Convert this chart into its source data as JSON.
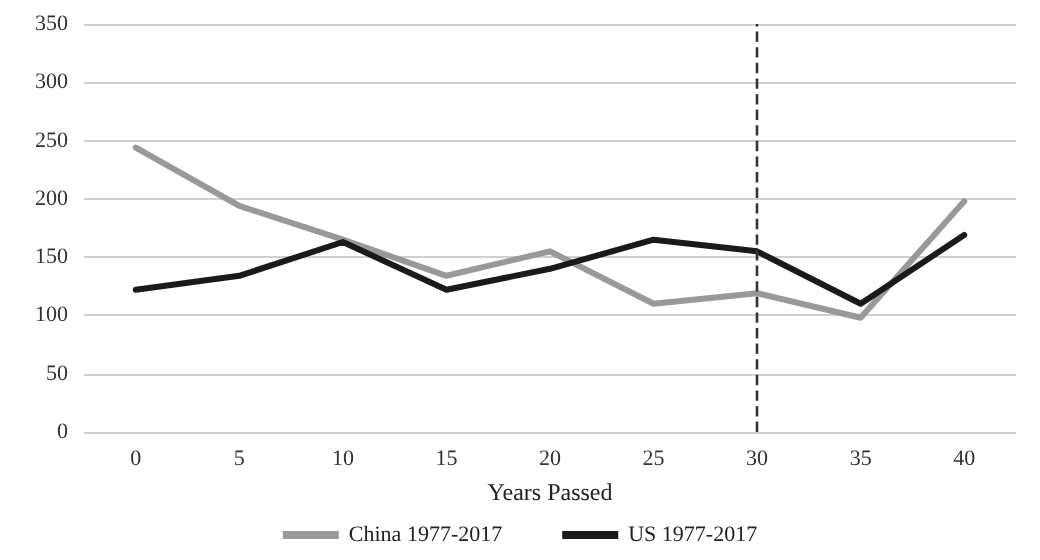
{
  "chart_data": {
    "type": "line",
    "xlabel": "Years Passed",
    "categories": [
      "0",
      "5",
      "10",
      "15",
      "20",
      "25",
      "30",
      "35",
      "40"
    ],
    "series": [
      {
        "name": "China 1977-2017",
        "color": "#999999",
        "values": [
          244,
          194,
          165,
          134,
          155,
          110,
          119,
          98,
          198
        ]
      },
      {
        "name": "US 1977-2017",
        "color": "#1a1a1a",
        "values": [
          122,
          134,
          163,
          122,
          140,
          165,
          155,
          110,
          169
        ]
      }
    ],
    "ylim": [
      0,
      350
    ],
    "yticks": [
      0,
      50,
      100,
      150,
      200,
      250,
      300,
      350
    ],
    "grid": "y",
    "legend": "bottom",
    "marker": "none",
    "line_style": "solid",
    "ref_lines": [
      {
        "axis": "x",
        "value": "30",
        "color": "#333333",
        "line_style": "dashed"
      }
    ]
  }
}
